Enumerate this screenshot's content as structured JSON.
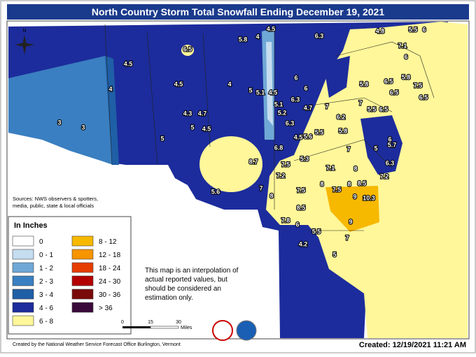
{
  "header": {
    "title": "North Country Storm Total Snowfall Ending December 19, 2021"
  },
  "north": "N",
  "sources": [
    "Sources: NWS observers & spotters,",
    "media, public, state & local officials"
  ],
  "legend": {
    "title": "In Inches",
    "items": [
      {
        "label": "0",
        "color": "#ffffff"
      },
      {
        "label": "0 - 1",
        "color": "#c6dcef"
      },
      {
        "label": "1 - 2",
        "color": "#6fa8d6"
      },
      {
        "label": "2 - 3",
        "color": "#3a7fc1"
      },
      {
        "label": "3 - 4",
        "color": "#1f5fa6"
      },
      {
        "label": "4 - 6",
        "color": "#1c2c9c"
      },
      {
        "label": "6 - 8",
        "color": "#fff799"
      },
      {
        "label": "8 - 12",
        "color": "#f7b800"
      },
      {
        "label": "12 - 18",
        "color": "#f79400"
      },
      {
        "label": "18 - 24",
        "color": "#e63d00"
      },
      {
        "label": "24 - 30",
        "color": "#b30000"
      },
      {
        "label": "30 - 36",
        "color": "#7a0a0a"
      },
      {
        "label": "> 36",
        "color": "#3a0a3a"
      }
    ]
  },
  "note": [
    "This map is an interpolation of",
    "actual reported values, but",
    "should be considered an",
    "estimation only."
  ],
  "scale": {
    "ticks": [
      "0",
      "15",
      "30"
    ],
    "unit": "Miles"
  },
  "credit": "Created by the National Weather Service Forecast Office Burlington, Vermont",
  "created": "Created: 12/19/2021 11:21 AM",
  "spots": [
    5.8,
    4,
    4.5,
    6.3,
    4.8,
    5.5,
    6,
    6.5,
    4.5,
    7.1,
    6,
    4,
    4.5,
    4,
    5,
    5.1,
    4.5,
    6,
    6,
    5.8,
    6.5,
    5.8,
    7.5,
    6.5,
    6.5,
    6.3,
    5.1,
    4.7,
    7,
    7,
    5.5,
    6.5,
    4.3,
    4.7,
    5.2,
    6.2,
    3,
    3,
    5,
    4.5,
    6.3,
    5.8,
    5.5,
    5,
    5.6,
    4.5,
    6.8,
    7,
    5,
    6,
    5.7,
    8.7,
    5.3,
    7.5,
    7.1,
    8,
    6.3,
    7.2,
    8,
    8.5,
    7.2,
    5.6,
    7,
    7.5,
    7.5,
    8,
    9,
    10.3,
    8,
    8.5,
    7.8,
    6,
    5.5,
    9,
    7,
    4.2,
    5
  ]
}
